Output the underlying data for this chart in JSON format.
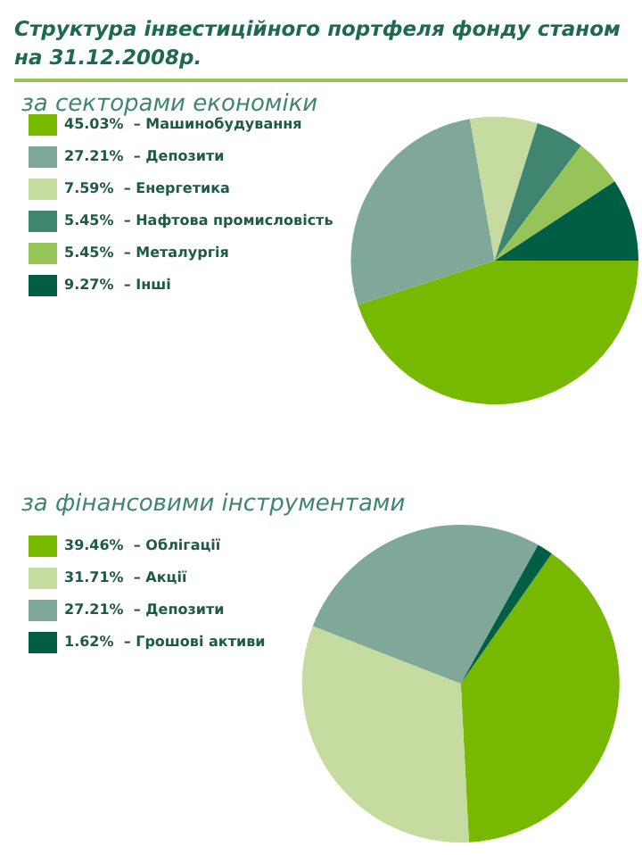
{
  "chart_data": [
    {
      "type": "pie",
      "title": "Структура інвестиційного портфеля фонду станом на 31.12.2008р.",
      "subtitle": "за секторами економіки",
      "categories": [
        "Машинобудування",
        "Депозити",
        "Енергетика",
        "Нафтова промисловість",
        "Металургія",
        "Інші"
      ],
      "values": [
        45.03,
        27.21,
        7.59,
        5.45,
        5.45,
        9.27
      ],
      "value_labels": [
        "45.03%",
        "27.21%",
        "7.59%",
        "5.45%",
        "5.45%",
        "9.27%"
      ],
      "colors": [
        "#76b900",
        "#7fa899",
        "#c5dba0",
        "#3f8570",
        "#97c459",
        "#005e44"
      ],
      "legend": "top left"
    },
    {
      "type": "pie",
      "subtitle": "за фінансовими інструментами",
      "categories": [
        "Облігації",
        "Акції",
        "Депозити",
        "Грошові активи"
      ],
      "values": [
        39.46,
        31.71,
        27.21,
        1.62
      ],
      "value_labels": [
        "39.46%",
        "31.71%",
        "27.21%",
        "1.62%"
      ],
      "colors": [
        "#76b900",
        "#c5dba0",
        "#7fa899",
        "#005e44"
      ],
      "legend": "top left"
    }
  ]
}
